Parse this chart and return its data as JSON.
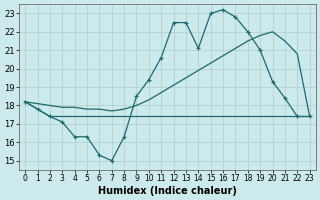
{
  "xlabel": "Humidex (Indice chaleur)",
  "xlim": [
    -0.5,
    23.5
  ],
  "ylim": [
    14.5,
    23.5
  ],
  "xticks": [
    0,
    1,
    2,
    3,
    4,
    5,
    6,
    7,
    8,
    9,
    10,
    11,
    12,
    13,
    14,
    15,
    16,
    17,
    18,
    19,
    20,
    21,
    22,
    23
  ],
  "yticks": [
    15,
    16,
    17,
    18,
    19,
    20,
    21,
    22,
    23
  ],
  "bg_color": "#cce9ec",
  "grid_color": "#b0cccc",
  "line_color": "#1a6b6b",
  "line1_x": [
    0,
    1,
    2,
    3,
    4,
    5,
    6,
    7,
    8,
    9,
    10,
    11,
    12,
    13,
    14,
    15,
    16,
    17,
    18,
    19,
    20,
    21,
    22,
    23
  ],
  "line1_y": [
    18.2,
    17.8,
    17.4,
    17.1,
    16.3,
    16.3,
    15.3,
    15.0,
    16.3,
    18.5,
    19.4,
    20.6,
    22.5,
    22.5,
    21.1,
    23.0,
    23.2,
    22.8,
    22.0,
    21.0,
    19.3,
    18.4,
    17.4,
    17.4
  ],
  "line2_x": [
    0,
    1,
    2,
    3,
    4,
    5,
    6,
    7,
    8,
    9,
    10,
    11,
    12,
    13,
    14,
    15,
    16,
    17,
    18,
    19,
    20,
    21,
    22,
    23
  ],
  "line2_y": [
    18.2,
    18.1,
    18.0,
    17.9,
    17.9,
    17.8,
    17.8,
    17.7,
    17.8,
    18.0,
    18.3,
    18.7,
    19.1,
    19.5,
    19.9,
    20.3,
    20.7,
    21.1,
    21.5,
    21.8,
    22.0,
    21.5,
    20.8,
    17.4
  ],
  "line3_x": [
    0,
    2,
    10,
    11,
    12,
    13,
    14,
    15,
    16,
    17,
    18,
    19,
    20,
    21,
    23
  ],
  "line3_y": [
    18.2,
    17.4,
    17.4,
    17.4,
    17.4,
    17.4,
    17.4,
    17.4,
    17.4,
    17.4,
    17.4,
    17.4,
    17.4,
    17.4,
    17.4
  ]
}
